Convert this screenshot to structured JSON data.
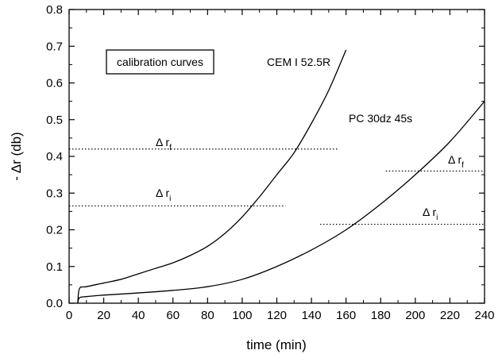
{
  "chart_data": {
    "type": "line",
    "title": "",
    "xlabel": "time (min)",
    "ylabel": "- Δr (db)",
    "xlim": [
      0,
      240
    ],
    "ylim": [
      0.0,
      0.8
    ],
    "x_ticks": [
      0,
      20,
      40,
      60,
      80,
      100,
      120,
      140,
      160,
      180,
      200,
      220,
      240
    ],
    "y_ticks": [
      "0.0",
      "0.1",
      "0.2",
      "0.3",
      "0.4",
      "0.5",
      "0.6",
      "0.7",
      "0.8"
    ],
    "grid": false,
    "legend_box": "calibration curves",
    "series": [
      {
        "name": "CEM I 52.5R",
        "x": [
          5,
          6,
          10,
          20,
          30,
          40,
          50,
          60,
          70,
          80,
          90,
          100,
          110,
          120,
          130,
          140,
          150,
          160
        ],
        "y": [
          0.0,
          0.04,
          0.045,
          0.055,
          0.065,
          0.08,
          0.095,
          0.11,
          0.13,
          0.155,
          0.19,
          0.235,
          0.29,
          0.35,
          0.41,
          0.49,
          0.58,
          0.69
        ]
      },
      {
        "name": "PC 30dz 45s",
        "x": [
          5,
          6,
          10,
          20,
          40,
          60,
          80,
          100,
          120,
          140,
          160,
          180,
          200,
          220,
          240
        ],
        "y": [
          0.0,
          0.015,
          0.018,
          0.022,
          0.028,
          0.035,
          0.045,
          0.065,
          0.1,
          0.145,
          0.2,
          0.27,
          0.35,
          0.44,
          0.55
        ]
      }
    ],
    "reference_lines": [
      {
        "label_main": "Δ r",
        "label_sub": "f",
        "y": 0.42,
        "x_start": 0,
        "x_end": 155
      },
      {
        "label_main": "Δ r",
        "label_sub": "i",
        "y": 0.265,
        "x_start": 0,
        "x_end": 125
      },
      {
        "label_main": "Δ r",
        "label_sub": "f",
        "y": 0.36,
        "x_start": 183,
        "x_end": 240
      },
      {
        "label_main": "Δ r",
        "label_sub": "i",
        "y": 0.215,
        "x_start": 145,
        "x_end": 240
      }
    ]
  }
}
